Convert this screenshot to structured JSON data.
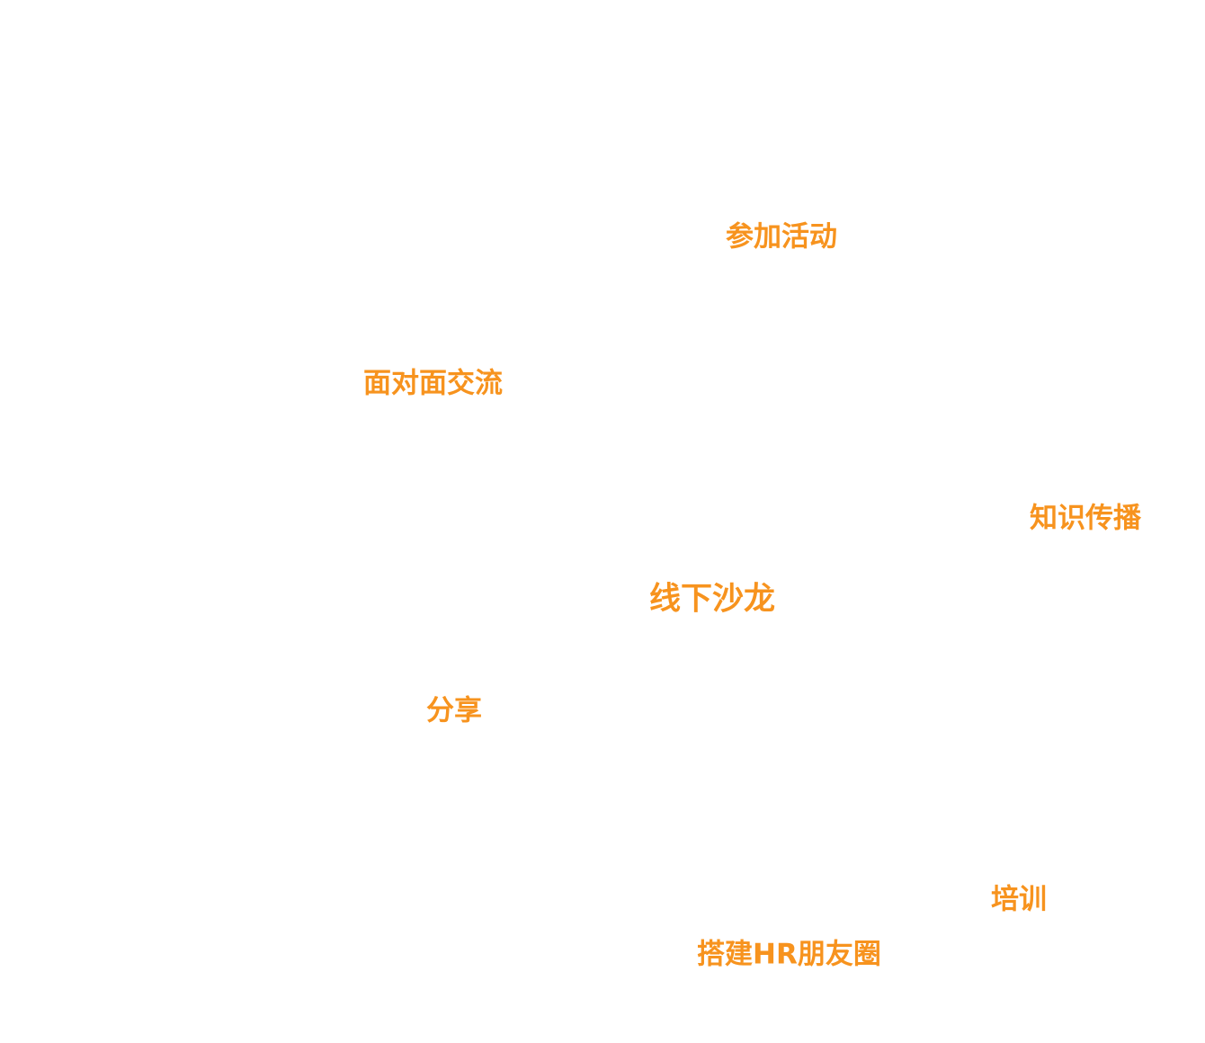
{
  "words": [
    {
      "text": "参加活动"
    },
    {
      "text": "面对面交流"
    },
    {
      "text": "知识传播"
    },
    {
      "text": "线下沙龙"
    },
    {
      "text": "分享"
    },
    {
      "text": "培训"
    },
    {
      "text": "搭建HR朋友圈"
    }
  ]
}
